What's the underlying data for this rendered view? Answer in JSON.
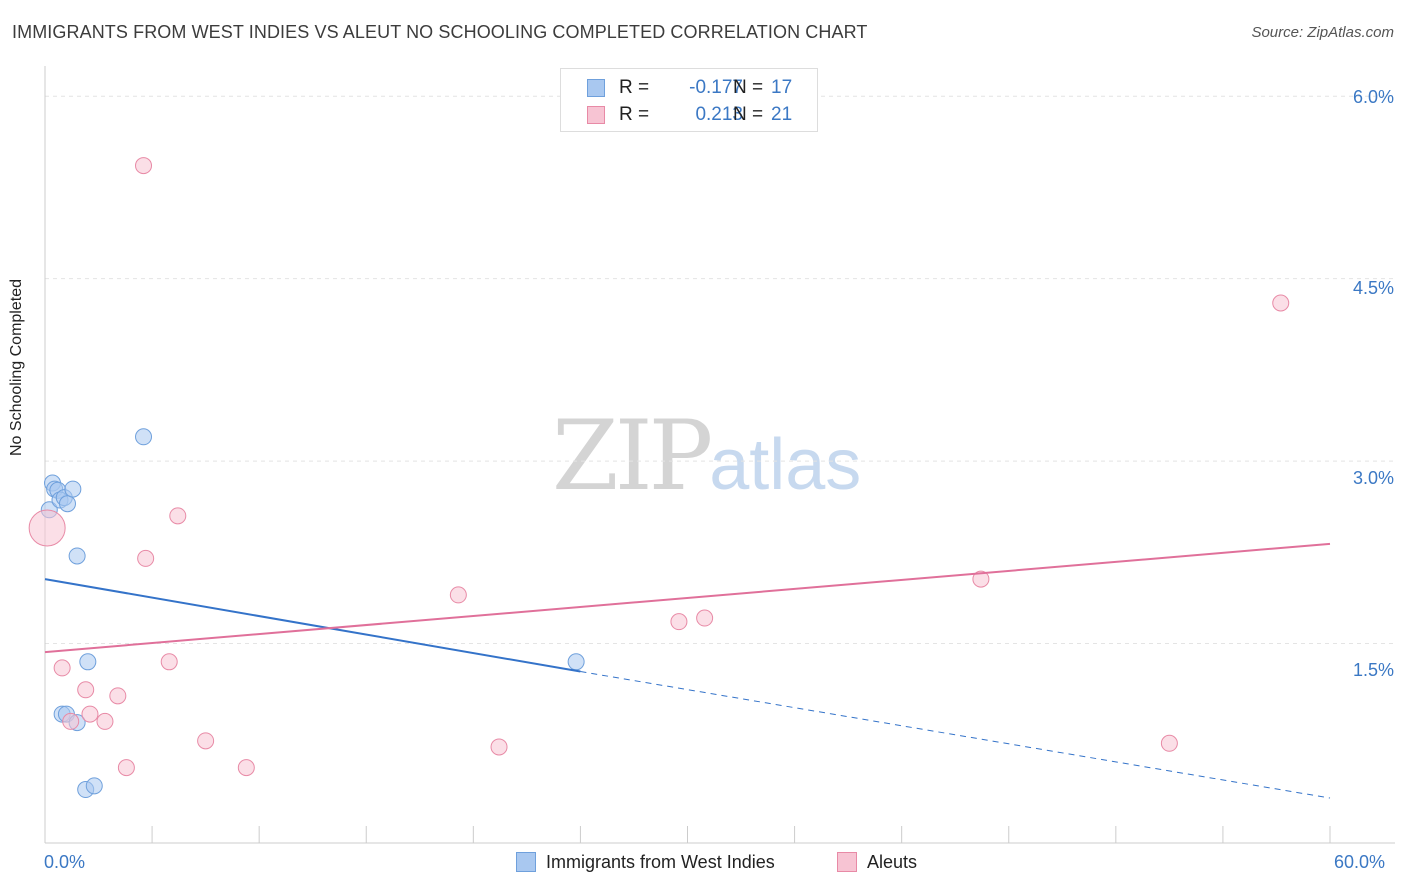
{
  "header": {
    "title": "IMMIGRANTS FROM WEST INDIES VS ALEUT NO SCHOOLING COMPLETED CORRELATION CHART",
    "source": "Source: ZipAtlas.com"
  },
  "watermark": {
    "zip": "ZIP",
    "atlas": "atlas"
  },
  "legend_top": {
    "rows": [
      {
        "r_label": "R =",
        "r_value": "-0.177",
        "n_label": "N =",
        "n_value": "17",
        "color": "#a9c8f0",
        "border": "#6fa0dc"
      },
      {
        "r_label": "R =",
        "r_value": "0.213",
        "n_label": "N =",
        "n_value": "21",
        "color": "#f7c4d3",
        "border": "#e88aa6"
      }
    ]
  },
  "legend_bottom": {
    "items": [
      {
        "label": "Immigrants from West Indies",
        "color": "#a9c8f0",
        "border": "#6fa0dc"
      },
      {
        "label": "Aleuts",
        "color": "#f7c4d3",
        "border": "#e88aa6"
      }
    ]
  },
  "chart_data": {
    "type": "scatter",
    "title": "IMMIGRANTS FROM WEST INDIES VS ALEUT NO SCHOOLING COMPLETED CORRELATION CHART",
    "ylabel": "No Schooling Completed",
    "xlabel": "",
    "xlim": [
      0,
      60
    ],
    "ylim": [
      0,
      6.15
    ],
    "x_ticks": [
      "0.0%",
      "60.0%"
    ],
    "y_ticks": [
      {
        "value": 1.5,
        "label": "1.5%"
      },
      {
        "value": 3.0,
        "label": "3.0%"
      },
      {
        "value": 4.5,
        "label": "4.5%"
      },
      {
        "value": 6.0,
        "label": "6.0%"
      }
    ],
    "grid": true,
    "series": [
      {
        "name": "Immigrants from West Indies",
        "color": "#a9c8f0",
        "stroke": "#6fa0dc",
        "line_color": "#3473c9",
        "points": [
          {
            "x": 0.2,
            "y": 2.6
          },
          {
            "x": 0.35,
            "y": 2.82
          },
          {
            "x": 0.45,
            "y": 2.77
          },
          {
            "x": 0.6,
            "y": 2.76
          },
          {
            "x": 0.7,
            "y": 2.68
          },
          {
            "x": 0.9,
            "y": 2.7
          },
          {
            "x": 1.05,
            "y": 2.65
          },
          {
            "x": 1.3,
            "y": 2.77
          },
          {
            "x": 1.5,
            "y": 2.22
          },
          {
            "x": 2.0,
            "y": 1.35
          },
          {
            "x": 0.8,
            "y": 0.92
          },
          {
            "x": 1.0,
            "y": 0.92
          },
          {
            "x": 1.5,
            "y": 0.85
          },
          {
            "x": 1.9,
            "y": 0.3
          },
          {
            "x": 2.3,
            "y": 0.33
          },
          {
            "x": 4.6,
            "y": 3.2
          },
          {
            "x": 24.8,
            "y": 1.35
          }
        ],
        "trend": {
          "x1": 0,
          "y1": 2.03,
          "x2": 25,
          "y2": 1.27,
          "dash_to_x": 60,
          "dash_to_y": 0.23
        }
      },
      {
        "name": "Aleuts",
        "color": "#f7c4d3",
        "stroke": "#e88aa6",
        "line_color": "#e0709a",
        "points": [
          {
            "x": 0.1,
            "y": 2.45,
            "big": true
          },
          {
            "x": 0.8,
            "y": 1.3
          },
          {
            "x": 1.2,
            "y": 0.86
          },
          {
            "x": 1.9,
            "y": 1.12
          },
          {
            "x": 2.1,
            "y": 0.92
          },
          {
            "x": 2.8,
            "y": 0.86
          },
          {
            "x": 3.4,
            "y": 1.07
          },
          {
            "x": 3.8,
            "y": 0.48
          },
          {
            "x": 4.6,
            "y": 5.43
          },
          {
            "x": 4.7,
            "y": 2.2
          },
          {
            "x": 5.8,
            "y": 1.35
          },
          {
            "x": 6.2,
            "y": 2.55
          },
          {
            "x": 7.5,
            "y": 0.7
          },
          {
            "x": 9.4,
            "y": 0.48
          },
          {
            "x": 19.3,
            "y": 1.9
          },
          {
            "x": 21.2,
            "y": 0.65
          },
          {
            "x": 29.6,
            "y": 1.68
          },
          {
            "x": 30.8,
            "y": 1.71
          },
          {
            "x": 43.7,
            "y": 2.03
          },
          {
            "x": 52.5,
            "y": 0.68
          },
          {
            "x": 57.7,
            "y": 4.3
          }
        ],
        "trend": {
          "x1": 0,
          "y1": 1.43,
          "x2": 60,
          "y2": 2.32
        }
      }
    ]
  }
}
